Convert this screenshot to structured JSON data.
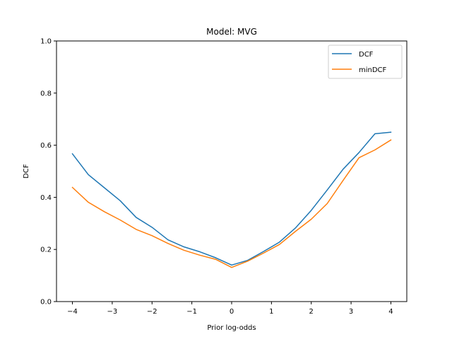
{
  "chart_data": {
    "type": "line",
    "title": "Model: MVG",
    "xlabel": "Prior log-odds",
    "ylabel": "DCF",
    "xlim": [
      -4.4,
      4.4
    ],
    "ylim": [
      0.0,
      1.0
    ],
    "grid": false,
    "legend_position": "top-right",
    "x": [
      -4.0,
      -3.6,
      -3.2,
      -2.8,
      -2.4,
      -2.0,
      -1.6,
      -1.2,
      -0.8,
      -0.4,
      0.0,
      0.4,
      0.8,
      1.2,
      1.6,
      2.0,
      2.4,
      2.8,
      3.2,
      3.6,
      4.0
    ],
    "series": [
      {
        "name": "DCF",
        "color": "#1f77b4",
        "values": [
          0.567,
          0.487,
          0.437,
          0.387,
          0.323,
          0.285,
          0.237,
          0.21,
          0.191,
          0.168,
          0.14,
          0.158,
          0.192,
          0.228,
          0.282,
          0.35,
          0.428,
          0.508,
          0.572,
          0.644,
          0.65
        ]
      },
      {
        "name": "minDCF",
        "color": "#ff7f0e",
        "values": [
          0.438,
          0.381,
          0.345,
          0.313,
          0.277,
          0.253,
          0.223,
          0.197,
          0.178,
          0.162,
          0.131,
          0.155,
          0.186,
          0.219,
          0.269,
          0.316,
          0.376,
          0.465,
          0.552,
          0.582,
          0.62
        ]
      }
    ],
    "xticks": [
      -4,
      -3,
      -2,
      -1,
      0,
      1,
      2,
      3,
      4
    ],
    "xtick_labels": [
      "−4",
      "−3",
      "−2",
      "−1",
      "0",
      "1",
      "2",
      "3",
      "4"
    ],
    "yticks": [
      0.0,
      0.2,
      0.4,
      0.6,
      0.8,
      1.0
    ],
    "ytick_labels": [
      "0.0",
      "0.2",
      "0.4",
      "0.6",
      "0.8",
      "1.0"
    ]
  }
}
